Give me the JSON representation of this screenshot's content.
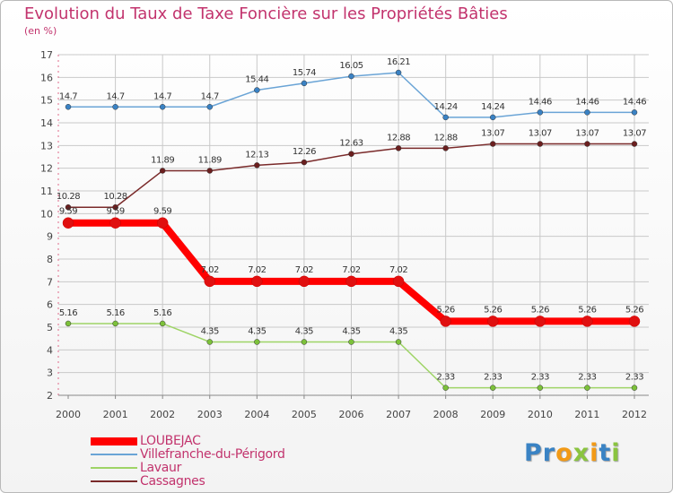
{
  "title": "Evolution du Taux de Taxe Foncière sur les Propriétés Bâties",
  "subtitle": "(en %)",
  "logo": {
    "text": "Proxiti",
    "colors": [
      "#3a83c4",
      "#3a83c4",
      "#f29a16",
      "#8ac43f",
      "#f29a16",
      "#3a83c4",
      "#8ac43f"
    ]
  },
  "chart_data": {
    "type": "line",
    "title": "Evolution du Taux de Taxe Foncière sur les Propriétés Bâties",
    "ylabel": "(en %)",
    "xlabel": "",
    "x": [
      "2000",
      "2001",
      "2002",
      "2003",
      "2004",
      "2005",
      "2006",
      "2007",
      "2008",
      "2009",
      "2010",
      "2011",
      "2012"
    ],
    "ylim": [
      2,
      17
    ],
    "yticks": [
      "2",
      "3",
      "4",
      "5",
      "6",
      "7",
      "8",
      "9",
      "10",
      "11",
      "12",
      "13",
      "14",
      "15",
      "16",
      "17"
    ],
    "legend_position": "bottom-left",
    "series": [
      {
        "name": "LOUBEJAC",
        "color": "#ff0000",
        "marker": "#e01010",
        "width": 8,
        "values": [
          9.59,
          9.59,
          9.59,
          7.02,
          7.02,
          7.02,
          7.02,
          7.02,
          5.26,
          5.26,
          5.26,
          5.26,
          5.26
        ],
        "labels": [
          "9.59",
          "9.59",
          "9.59",
          "7.02",
          "7.02",
          "7.02",
          "7.02",
          "7.02",
          "5.26",
          "5.26",
          "5.26",
          "5.26",
          "5.26"
        ]
      },
      {
        "name": "Villefranche-du-Périgord",
        "color": "#6aa4d6",
        "marker": "#3a82c4",
        "width": 1.5,
        "values": [
          14.7,
          14.7,
          14.7,
          14.7,
          15.44,
          15.74,
          16.05,
          16.21,
          14.24,
          14.24,
          14.46,
          14.46,
          14.46
        ],
        "labels": [
          "14.7",
          "14.7",
          "14.7",
          "14.7",
          "15.44",
          "15.74",
          "16.05",
          "16.21",
          "14.24",
          "14.24",
          "14.46",
          "14.46",
          "14.46"
        ]
      },
      {
        "name": "Lavaur",
        "color": "#9ed466",
        "marker": "#7cc13a",
        "width": 1.5,
        "values": [
          5.16,
          5.16,
          5.16,
          4.35,
          4.35,
          4.35,
          4.35,
          4.35,
          2.33,
          2.33,
          2.33,
          2.33,
          2.33
        ],
        "labels": [
          "5.16",
          "5.16",
          "5.16",
          "4.35",
          "4.35",
          "4.35",
          "4.35",
          "4.35",
          "2.33",
          "2.33",
          "2.33",
          "2.33",
          "2.33"
        ]
      },
      {
        "name": "Cassagnes",
        "color": "#7a2a2a",
        "marker": "#6b1f1f",
        "width": 1.5,
        "values": [
          10.28,
          10.28,
          11.89,
          11.89,
          12.13,
          12.26,
          12.63,
          12.88,
          12.88,
          13.07,
          13.07,
          13.07,
          13.07
        ],
        "labels": [
          "10.28",
          "10.28",
          "11.89",
          "11.89",
          "12.13",
          "12.26",
          "12.63",
          "12.88",
          "12.88",
          "13.07",
          "13.07",
          "13.07",
          "13.07"
        ]
      }
    ]
  }
}
